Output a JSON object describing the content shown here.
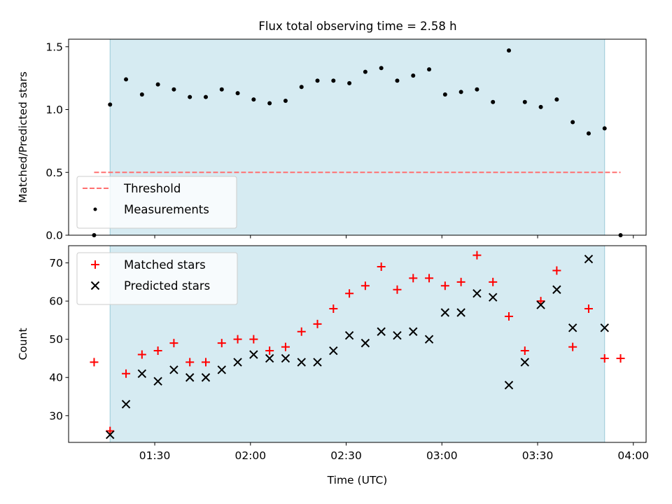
{
  "figure_title": "Flux total observing time = 2.58 h",
  "chart_data": [
    {
      "type": "scatter",
      "panel": "top",
      "ylabel": "Matched/Predicted stars",
      "ylim": [
        0,
        1.56
      ],
      "xlim": [
        "01:03",
        "04:04"
      ],
      "yticks": [
        0.0,
        0.5,
        1.0,
        1.5
      ],
      "ytick_labels": [
        "0.0",
        "0.5",
        "1.0",
        "1.5"
      ],
      "shaded_interval": [
        "01:16",
        "03:51"
      ],
      "threshold": {
        "name": "Threshold",
        "value": 0.5,
        "x_range": [
          "01:11",
          "03:56"
        ],
        "color": "#ff7070"
      },
      "series": [
        {
          "name": "Measurements",
          "color": "#000000",
          "marker": "dot",
          "x": [
            "01:11",
            "01:16",
            "01:21",
            "01:26",
            "01:31",
            "01:36",
            "01:41",
            "01:46",
            "01:51",
            "01:56",
            "02:01",
            "02:06",
            "02:11",
            "02:16",
            "02:21",
            "02:26",
            "02:31",
            "02:36",
            "02:41",
            "02:46",
            "02:51",
            "02:56",
            "03:01",
            "03:06",
            "03:11",
            "03:16",
            "03:21",
            "03:26",
            "03:31",
            "03:36",
            "03:41",
            "03:46",
            "03:51",
            "03:56"
          ],
          "y": [
            0.0,
            1.04,
            1.24,
            1.12,
            1.2,
            1.16,
            1.1,
            1.1,
            1.16,
            1.13,
            1.08,
            1.05,
            1.07,
            1.18,
            1.23,
            1.23,
            1.21,
            1.3,
            1.33,
            1.23,
            1.27,
            1.32,
            1.12,
            1.14,
            1.16,
            1.06,
            1.47,
            1.06,
            1.02,
            1.08,
            0.9,
            0.81,
            0.85,
            0.0
          ]
        }
      ],
      "legend": {
        "placement": "lower-left"
      }
    },
    {
      "type": "scatter",
      "panel": "bottom",
      "xlabel": "Time (UTC)",
      "ylabel": "Count",
      "ylim": [
        23,
        74.5
      ],
      "xlim": [
        "01:03",
        "04:04"
      ],
      "yticks": [
        30,
        40,
        50,
        60,
        70
      ],
      "ytick_labels": [
        "30",
        "40",
        "50",
        "60",
        "70"
      ],
      "xticks": [
        "01:30",
        "02:00",
        "02:30",
        "03:00",
        "03:30",
        "04:00"
      ],
      "xtick_labels": [
        "01:30",
        "02:00",
        "02:30",
        "03:00",
        "03:30",
        "04:00"
      ],
      "shaded_interval": [
        "01:16",
        "03:51"
      ],
      "series": [
        {
          "name": "Matched stars",
          "color": "#ff0000",
          "marker": "plus",
          "x": [
            "01:11",
            "01:16",
            "01:21",
            "01:26",
            "01:31",
            "01:36",
            "01:41",
            "01:46",
            "01:51",
            "01:56",
            "02:01",
            "02:06",
            "02:11",
            "02:16",
            "02:21",
            "02:26",
            "02:31",
            "02:36",
            "02:41",
            "02:46",
            "02:51",
            "02:56",
            "03:01",
            "03:06",
            "03:11",
            "03:16",
            "03:21",
            "03:26",
            "03:31",
            "03:36",
            "03:41",
            "03:46",
            "03:51",
            "03:56"
          ],
          "y": [
            44,
            26,
            41,
            46,
            47,
            49,
            44,
            44,
            49,
            50,
            50,
            47,
            48,
            52,
            54,
            58,
            62,
            64,
            69,
            63,
            66,
            66,
            64,
            65,
            72,
            65,
            56,
            47,
            60,
            68,
            48,
            58,
            45,
            45
          ]
        },
        {
          "name": "Predicted stars",
          "color": "#000000",
          "marker": "x",
          "x": [
            "01:16",
            "01:21",
            "01:26",
            "01:31",
            "01:36",
            "01:41",
            "01:46",
            "01:51",
            "01:56",
            "02:01",
            "02:06",
            "02:11",
            "02:16",
            "02:21",
            "02:26",
            "02:31",
            "02:36",
            "02:41",
            "02:46",
            "02:51",
            "02:56",
            "03:01",
            "03:06",
            "03:11",
            "03:16",
            "03:21",
            "03:26",
            "03:31",
            "03:36",
            "03:41",
            "03:46",
            "03:51"
          ],
          "y": [
            25,
            33,
            41,
            39,
            42,
            40,
            40,
            42,
            44,
            46,
            45,
            45,
            44,
            44,
            47,
            51,
            49,
            52,
            51,
            52,
            50,
            57,
            57,
            62,
            61,
            38,
            44,
            59,
            63,
            53,
            71,
            53
          ]
        }
      ],
      "legend": {
        "placement": "upper-left"
      }
    }
  ]
}
